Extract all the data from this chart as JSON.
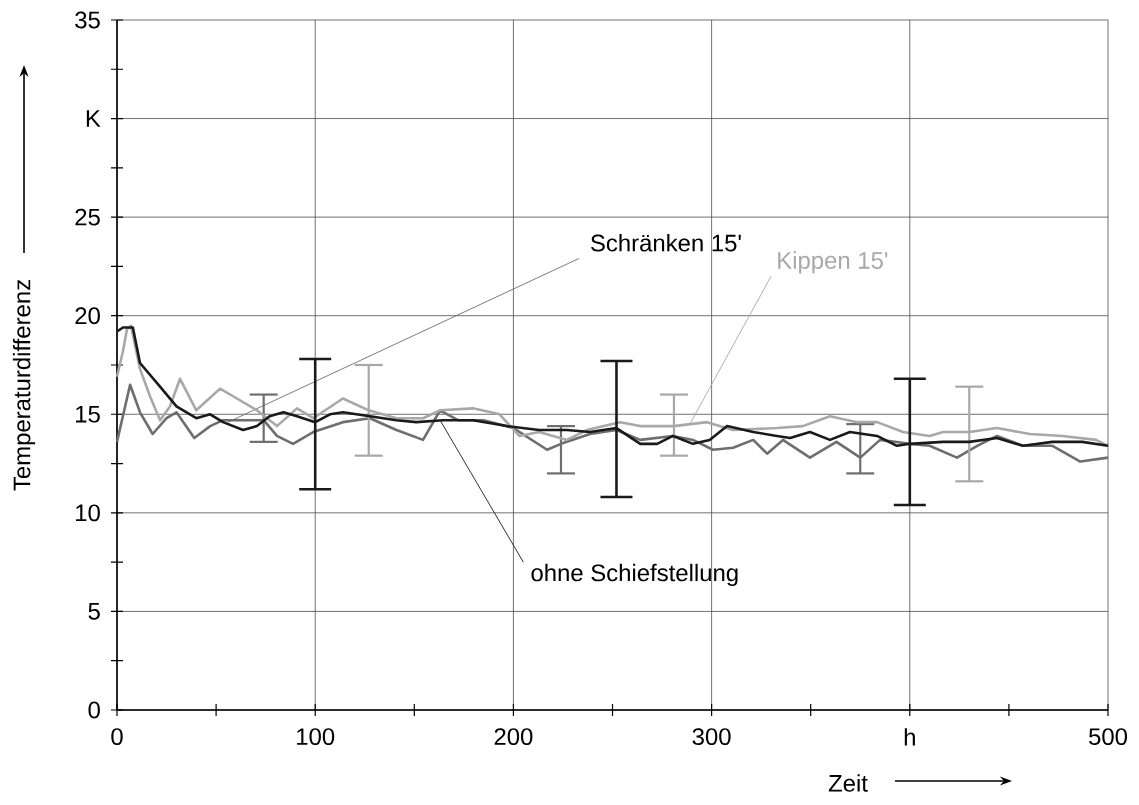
{
  "chart_data": {
    "type": "line",
    "xlabel": "Zeit",
    "ylabel": "Temperaturdifferenz",
    "xlim": [
      0,
      500
    ],
    "ylim": [
      0,
      35
    ],
    "xticks": [
      0,
      {
        "value": 50,
        "label": null
      },
      100,
      {
        "value": 150,
        "label": null
      },
      200,
      {
        "value": 250,
        "label": null
      },
      300,
      {
        "value": 350,
        "label": null
      },
      {
        "value": 400,
        "label": "h"
      },
      {
        "value": 450,
        "label": null
      },
      500
    ],
    "yticks": [
      0,
      {
        "value": 2.5,
        "label": null
      },
      5,
      {
        "value": 7.5,
        "label": null
      },
      10,
      {
        "value": 12.5,
        "label": null
      },
      15,
      {
        "value": 17.5,
        "label": null
      },
      20,
      {
        "value": 22.5,
        "label": null
      },
      25,
      {
        "value": 27.5,
        "label": null
      },
      {
        "value": 30,
        "label": "K"
      },
      {
        "value": 32.5,
        "label": null
      },
      35
    ],
    "grid": true,
    "marker": "none",
    "line_style": "solid",
    "series": [
      {
        "name": "Schränken 15'",
        "color": "#6e6e6e",
        "x": [
          0,
          6.6,
          11.6,
          18,
          25,
          30,
          39,
          47,
          53.5,
          60.5,
          74,
          80.7,
          88.8,
          99,
          114,
          127.6,
          141,
          154.4,
          163,
          172,
          185,
          200,
          217,
          224,
          238.6,
          252,
          264,
          280.5,
          290.6,
          300.7,
          310.8,
          321,
          328,
          336,
          349.6,
          363,
          375,
          385,
          400,
          410,
          423.8,
          434,
          444,
          457,
          472,
          486,
          500
        ],
        "values": [
          13.6,
          16.5,
          15.1,
          14.0,
          14.8,
          15.1,
          13.8,
          14.4,
          14.7,
          14.7,
          14.7,
          13.9,
          13.5,
          14.1,
          14.6,
          14.8,
          14.2,
          13.7,
          15.2,
          14.7,
          14.7,
          14.3,
          13.2,
          13.5,
          14.0,
          14.2,
          13.7,
          13.9,
          13.7,
          13.2,
          13.3,
          13.7,
          13.0,
          13.7,
          12.8,
          13.6,
          12.8,
          13.7,
          13.5,
          13.4,
          12.8,
          13.4,
          13.9,
          13.4,
          13.4,
          12.6,
          12.8
        ],
        "errors": [
          null,
          null,
          null,
          null,
          null,
          null,
          null,
          null,
          null,
          null,
          [
            13.6,
            16.0
          ],
          null,
          null,
          null,
          null,
          null,
          null,
          null,
          null,
          null,
          null,
          null,
          null,
          [
            12.0,
            14.4
          ],
          null,
          null,
          null,
          null,
          null,
          null,
          null,
          null,
          null,
          null,
          null,
          null,
          [
            12.0,
            14.5
          ],
          null,
          null,
          null,
          null,
          null,
          null,
          null,
          null,
          null,
          null
        ]
      },
      {
        "name": "Kippen 15'",
        "color": "#a8a8a8",
        "x": [
          0,
          3,
          5,
          7,
          11.6,
          16.7,
          21.7,
          26.7,
          31.8,
          40,
          52,
          60.5,
          70.6,
          80.7,
          90.8,
          99,
          114,
          127,
          141,
          154.4,
          163,
          179.6,
          193,
          203,
          213,
          227,
          237,
          253.8,
          264,
          281,
          297.7,
          310.8,
          333,
          346,
          359.7,
          373.4,
          383.5,
          396.6,
          410,
          416.8,
          430,
          444,
          460.6,
          477,
          494,
          500
        ],
        "values": [
          16.9,
          18.2,
          19.3,
          19.5,
          17.3,
          15.9,
          14.7,
          15.4,
          16.8,
          15.2,
          16.3,
          15.8,
          15.2,
          14.4,
          15.3,
          14.8,
          15.8,
          15.2,
          14.8,
          14.8,
          15.2,
          15.3,
          15.0,
          13.9,
          14.1,
          13.7,
          14.2,
          14.6,
          14.4,
          14.4,
          14.6,
          14.2,
          14.3,
          14.4,
          14.9,
          14.6,
          14.6,
          14.1,
          13.9,
          14.1,
          14.1,
          14.3,
          14.0,
          13.9,
          13.7,
          13.4
        ],
        "errors": [
          null,
          null,
          null,
          null,
          null,
          null,
          null,
          null,
          null,
          null,
          null,
          null,
          null,
          null,
          null,
          null,
          null,
          [
            12.9,
            17.5
          ],
          null,
          null,
          null,
          null,
          null,
          null,
          null,
          null,
          null,
          null,
          null,
          [
            12.9,
            16.0
          ],
          null,
          null,
          null,
          null,
          null,
          null,
          null,
          null,
          null,
          null,
          [
            11.6,
            16.4
          ],
          null,
          null,
          null,
          null,
          null
        ]
      },
      {
        "name": "ohne Schiefstellung",
        "color": "#1a1a1a",
        "x": [
          0,
          3,
          8,
          11.6,
          21.7,
          30,
          40,
          47,
          53.5,
          63.6,
          70.6,
          77,
          84,
          90.8,
          100,
          107.5,
          114,
          127.6,
          141,
          151,
          164.5,
          179.6,
          196.8,
          213,
          227,
          238.6,
          252,
          264,
          272.5,
          280.5,
          290.6,
          299,
          307.8,
          321,
          333,
          339.6,
          349.6,
          359.7,
          369.8,
          383.5,
          393.5,
          400,
          416.8,
          430,
          444,
          457,
          472,
          487,
          500
        ],
        "values": [
          19.2,
          19.4,
          19.4,
          17.6,
          16.4,
          15.4,
          14.8,
          15.0,
          14.6,
          14.2,
          14.4,
          14.9,
          15.1,
          14.9,
          14.6,
          15.0,
          15.1,
          14.9,
          14.7,
          14.6,
          14.7,
          14.7,
          14.4,
          14.2,
          14.2,
          14.1,
          14.3,
          13.5,
          13.5,
          13.9,
          13.5,
          13.7,
          14.4,
          14.1,
          13.9,
          13.8,
          14.1,
          13.7,
          14.1,
          13.9,
          13.4,
          13.5,
          13.6,
          13.6,
          13.8,
          13.4,
          13.6,
          13.6,
          13.4
        ],
        "errors": [
          null,
          null,
          null,
          null,
          null,
          null,
          null,
          null,
          null,
          null,
          null,
          null,
          null,
          null,
          [
            11.2,
            17.8
          ],
          null,
          null,
          null,
          null,
          null,
          null,
          null,
          null,
          null,
          null,
          null,
          [
            10.8,
            17.7
          ],
          null,
          null,
          null,
          null,
          null,
          null,
          null,
          null,
          null,
          null,
          null,
          null,
          null,
          null,
          [
            10.4,
            16.8
          ],
          null,
          null,
          null,
          null,
          null,
          null,
          null
        ]
      }
    ]
  }
}
